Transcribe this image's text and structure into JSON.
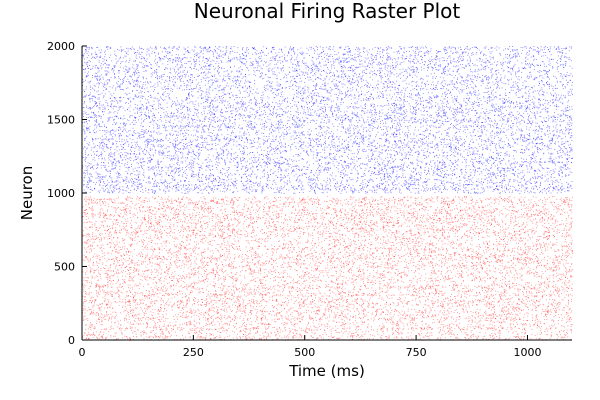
{
  "chart_data": {
    "type": "scatter",
    "title": "Neuronal Firing Raster Plot",
    "xlabel": "Time (ms)",
    "ylabel": "Neuron",
    "xlim": [
      0,
      1100
    ],
    "ylim": [
      0,
      2000
    ],
    "xticks": [
      0,
      250,
      500,
      750,
      1000
    ],
    "yticks": [
      0,
      500,
      1000,
      1500,
      2000
    ],
    "grid": false,
    "legend": "none",
    "series": [
      {
        "color": "#ff0000",
        "neuron_range": [
          1,
          980
        ],
        "time_range": [
          0,
          1100
        ],
        "marker": "tiny-dot",
        "opacity": 0.45
      },
      {
        "color": "#0000ff",
        "neuron_range": [
          1001,
          2000
        ],
        "time_range": [
          0,
          1100
        ],
        "marker": "tiny-dot",
        "opacity": 0.5
      }
    ]
  }
}
